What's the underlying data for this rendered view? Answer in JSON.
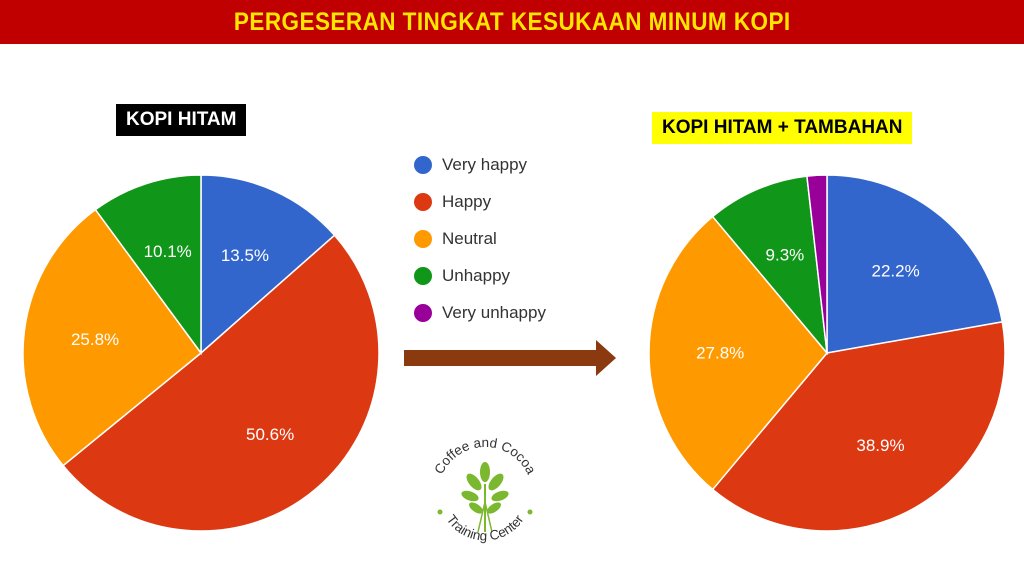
{
  "title": "PERGESERAN TINGKAT KESUKAAN MINUM KOPI",
  "colors": {
    "banner": "#c00000",
    "title_text": "#ffe600",
    "very_happy": "#3366cc",
    "happy": "#dc3912",
    "neutral": "#ff9900",
    "unhappy": "#109618",
    "very_unhappy": "#990099",
    "arrow": "#8b3a0f",
    "logo": "#7cb82f"
  },
  "legend": [
    {
      "label": "Very happy",
      "color": "#3366cc"
    },
    {
      "label": "Happy",
      "color": "#dc3912"
    },
    {
      "label": "Neutral",
      "color": "#ff9900"
    },
    {
      "label": "Unhappy",
      "color": "#109618"
    },
    {
      "label": "Very unhappy",
      "color": "#990099"
    }
  ],
  "chart_data": [
    {
      "type": "pie",
      "title": "KOPI HITAM",
      "categories": [
        "Very happy",
        "Happy",
        "Neutral",
        "Unhappy",
        "Very unhappy"
      ],
      "values": [
        13.5,
        50.6,
        25.8,
        10.1,
        0
      ],
      "labels": [
        "13.5%",
        "50.6%",
        "25.8%",
        "10.1%",
        ""
      ],
      "colors": [
        "#3366cc",
        "#dc3912",
        "#ff9900",
        "#109618",
        "#990099"
      ]
    },
    {
      "type": "pie",
      "title": "KOPI HITAM + TAMBAHAN",
      "categories": [
        "Very happy",
        "Happy",
        "Neutral",
        "Unhappy",
        "Very unhappy"
      ],
      "values": [
        22.2,
        38.9,
        27.8,
        9.3,
        1.8
      ],
      "labels": [
        "22.2%",
        "38.9%",
        "27.8%",
        "9.3%",
        ""
      ],
      "colors": [
        "#3366cc",
        "#dc3912",
        "#ff9900",
        "#109618",
        "#990099"
      ]
    }
  ],
  "logo": {
    "top_text": "Coffee and Cocoa",
    "bottom_text": "Training Center",
    "icon": "coffee-plant-icon"
  }
}
